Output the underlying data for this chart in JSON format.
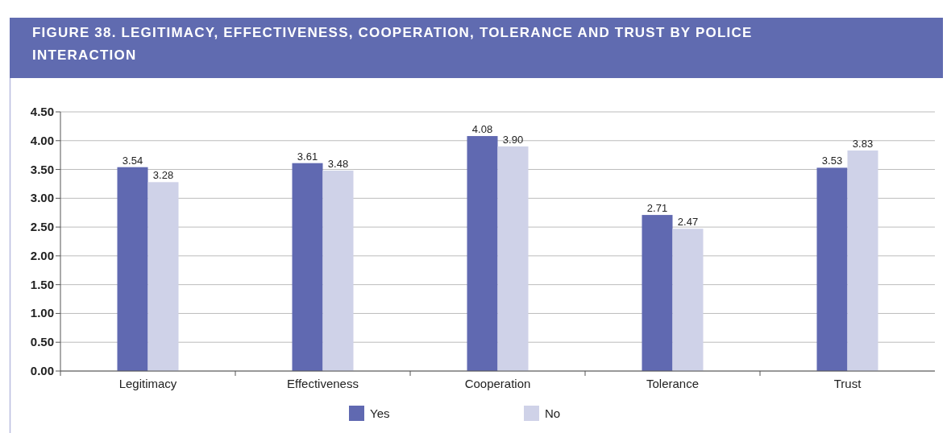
{
  "chart_data": {
    "type": "bar",
    "title": "FIGURE 38. LEGITIMACY, EFFECTIVENESS, COOPERATION, TOLERANCE AND TRUST BY POLICE INTERACTION",
    "categories": [
      "Legitimacy",
      "Effectiveness",
      "Cooperation",
      "Tolerance",
      "Trust"
    ],
    "series": [
      {
        "name": "Yes",
        "color": "#6069b1",
        "values": [
          3.54,
          3.61,
          4.08,
          2.71,
          3.53
        ],
        "value_labels": [
          "3.54",
          "3.61",
          "4.08",
          "2.71",
          "3.53"
        ]
      },
      {
        "name": "No",
        "color": "#cfd2e8",
        "values": [
          3.28,
          3.48,
          3.9,
          2.47,
          3.83
        ],
        "value_labels": [
          "3.28",
          "3.48",
          "3.90",
          "2.47",
          "3.83"
        ]
      }
    ],
    "ylim": [
      0,
      4.5
    ],
    "yticks": [
      {
        "value": 0,
        "label": "0.00"
      },
      {
        "value": 0.5,
        "label": "0.50"
      },
      {
        "value": 1,
        "label": "1.00"
      },
      {
        "value": 1.5,
        "label": "1.50"
      },
      {
        "value": 2,
        "label": "2.00"
      },
      {
        "value": 2.5,
        "label": "2.50"
      },
      {
        "value": 3,
        "label": "3.00"
      },
      {
        "value": 3.5,
        "label": "3.50"
      },
      {
        "value": 4,
        "label": "4.00"
      },
      {
        "value": 4.5,
        "label": "4.50"
      }
    ],
    "grid": "y",
    "legend": "bottom"
  }
}
